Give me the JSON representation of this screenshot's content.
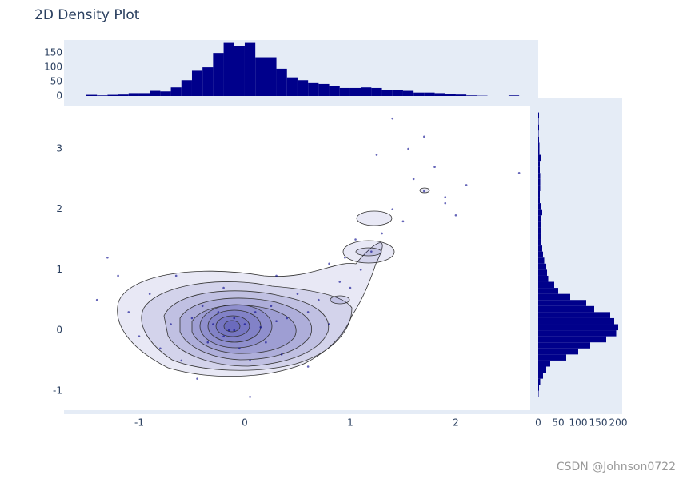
{
  "chart_data": [
    {
      "type": "scatter",
      "title": "2D Density Plot",
      "color": "#00008b",
      "x": [
        -1.4,
        -1.3,
        -1.2,
        -1.1,
        -0.9,
        -0.8,
        -0.7,
        -0.6,
        -0.5,
        -0.4,
        -0.35,
        -0.3,
        -0.25,
        -0.2,
        -0.15,
        -0.1,
        -0.05,
        0,
        0.05,
        0.1,
        0.15,
        0.2,
        0.25,
        0.3,
        0.35,
        0.4,
        0.5,
        0.6,
        0.7,
        0.8,
        0.9,
        1.0,
        1.1,
        1.2,
        1.3,
        1.4,
        1.5,
        1.6,
        1.7,
        1.8,
        1.9,
        2.0,
        2.1,
        2.6,
        1.4,
        1.55,
        1.25,
        0.95,
        -0.45,
        -0.65,
        0.05,
        -0.2,
        0.3,
        0.6,
        -1.0,
        0.8,
        1.05,
        1.7,
        1.9,
        -0.1
      ],
      "y": [
        0.5,
        1.2,
        0.9,
        0.3,
        0.6,
        -0.3,
        0.1,
        -0.5,
        0.2,
        0.4,
        -0.2,
        0.1,
        0.3,
        -0.1,
        0.0,
        0.2,
        -0.3,
        0.1,
        -0.5,
        0.3,
        0.05,
        -0.2,
        0.4,
        0.15,
        -0.4,
        0.2,
        0.6,
        0.3,
        0.5,
        0.1,
        0.8,
        0.7,
        1.0,
        1.3,
        1.6,
        2.0,
        1.8,
        2.5,
        2.3,
        2.7,
        2.2,
        1.9,
        2.4,
        2.6,
        3.5,
        3.0,
        2.9,
        1.2,
        -0.8,
        0.9,
        -1.1,
        0.7,
        0.9,
        -0.6,
        -0.1,
        1.1,
        1.5,
        3.2,
        2.1,
        0.0
      ],
      "xlim": [
        -1.712,
        2.705
      ],
      "ylim": [
        -1.32,
        3.7
      ],
      "xticks": [
        -1,
        0,
        1,
        2
      ],
      "yticks": [
        -1,
        0,
        1,
        2,
        3
      ]
    },
    {
      "type": "histogram",
      "orientation": "v",
      "color": "#00008b",
      "bins": [
        -1.5,
        -1.4,
        -1.3,
        -1.2,
        -1.1,
        -1.0,
        -0.9,
        -0.8,
        -0.7,
        -0.6,
        -0.5,
        -0.4,
        -0.3,
        -0.2,
        -0.1,
        0,
        0.1,
        0.2,
        0.3,
        0.4,
        0.5,
        0.6,
        0.7,
        0.8,
        0.9,
        1.0,
        1.1,
        1.2,
        1.3,
        1.4,
        1.5,
        1.6,
        1.7,
        1.8,
        1.9,
        2.0,
        2.1,
        2.2,
        2.3,
        2.4,
        2.5,
        2.6,
        2.7
      ],
      "values": [
        4,
        2,
        4,
        5,
        10,
        10,
        18,
        16,
        30,
        55,
        88,
        100,
        150,
        185,
        175,
        185,
        135,
        135,
        95,
        65,
        55,
        45,
        42,
        35,
        28,
        28,
        30,
        28,
        22,
        20,
        18,
        12,
        12,
        10,
        8,
        5,
        2,
        1,
        0,
        0,
        2,
        0
      ],
      "xlim": [
        -1.712,
        2.705
      ],
      "ylim": [
        0,
        195
      ],
      "yticks": [
        0,
        50,
        100,
        150
      ]
    },
    {
      "type": "histogram",
      "orientation": "h",
      "color": "#00008b",
      "bins": [
        -1.1,
        -1.0,
        -0.9,
        -0.8,
        -0.7,
        -0.6,
        -0.5,
        -0.4,
        -0.3,
        -0.2,
        -0.1,
        0,
        0.1,
        0.2,
        0.3,
        0.4,
        0.5,
        0.6,
        0.7,
        0.8,
        0.9,
        1.0,
        1.1,
        1.2,
        1.3,
        1.4,
        1.5,
        1.6,
        1.7,
        1.8,
        1.9,
        2.0,
        2.1,
        2.2,
        2.3,
        2.4,
        2.5,
        2.6,
        2.7,
        2.8,
        2.9,
        3.0,
        3.1,
        3.2,
        3.3,
        3.4,
        3.5,
        3.6
      ],
      "values": [
        1,
        2,
        5,
        12,
        20,
        30,
        70,
        100,
        130,
        170,
        195,
        200,
        190,
        180,
        140,
        120,
        80,
        50,
        40,
        25,
        22,
        20,
        15,
        12,
        10,
        8,
        8,
        6,
        6,
        8,
        10,
        6,
        4,
        4,
        5,
        5,
        5,
        4,
        4,
        6,
        3,
        3,
        2,
        1,
        2,
        1,
        2
      ],
      "xlim": [
        0,
        210
      ],
      "ylim": [
        -1.32,
        3.7
      ],
      "xticks": [
        0,
        50,
        100,
        150,
        200
      ]
    }
  ],
  "watermark": "CSDN @Johnson0722"
}
